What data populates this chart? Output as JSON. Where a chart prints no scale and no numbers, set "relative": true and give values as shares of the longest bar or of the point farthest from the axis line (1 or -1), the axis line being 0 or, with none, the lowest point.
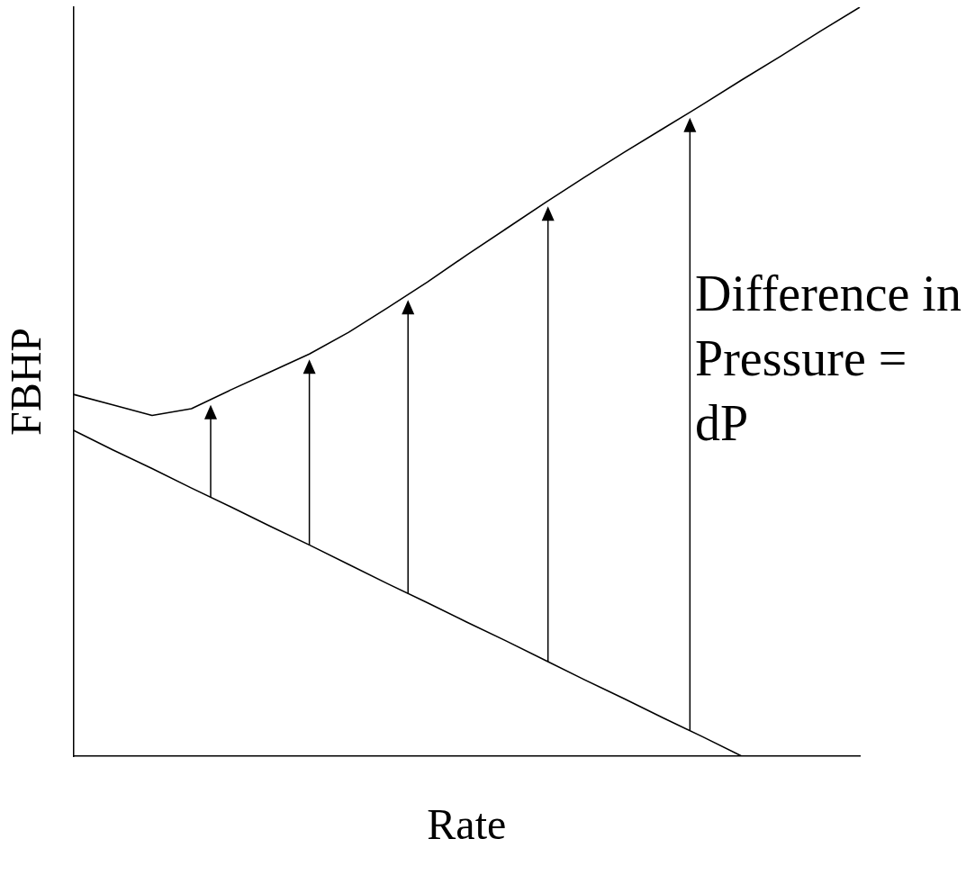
{
  "chart_data": {
    "type": "line",
    "relative": true,
    "xlabel": "Rate",
    "ylabel": "FBHP",
    "legend": false,
    "grid": false,
    "marker": "none",
    "line_style": "solid",
    "annotations": [
      "Difference in Pressure = dP"
    ],
    "categories": [
      null,
      null,
      null,
      null,
      null,
      null,
      null,
      null,
      null,
      null,
      null,
      null,
      null,
      null,
      null,
      null,
      null,
      null,
      null,
      null,
      null
    ],
    "series": [
      {
        "color": "#000000",
        "values": [
          0.435,
          0.409,
          0.384,
          0.358,
          0.333,
          0.307,
          0.282,
          0.256,
          0.23,
          0.205,
          0.179,
          0.154,
          0.128,
          0.102,
          0.077,
          0.051,
          0.026,
          0,
          null,
          null,
          null
        ]
      },
      {
        "color": "#000000",
        "values": [
          0.483,
          0.469,
          0.455,
          0.464,
          0.489,
          0.513,
          0.537,
          0.566,
          0.599,
          0.633,
          0.669,
          0.704,
          0.739,
          0.773,
          0.806,
          0.838,
          0.87,
          0.903,
          0.935,
          0.968,
          1
        ]
      }
    ]
  }
}
